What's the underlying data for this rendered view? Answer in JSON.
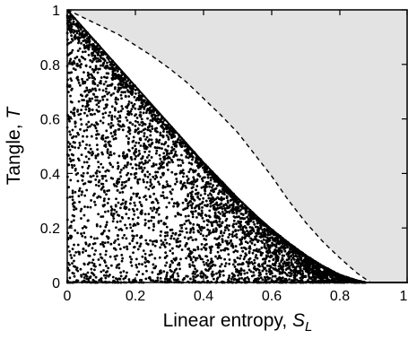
{
  "chart_data": {
    "type": "scatter",
    "title": "",
    "xlabel_text": "Linear entropy, ",
    "xlabel_symbol": "S",
    "xlabel_subscript": "L",
    "ylabel_text": "Tangle, ",
    "ylabel_symbol": "T",
    "xlim": [
      0,
      1
    ],
    "ylim": [
      0,
      1
    ],
    "x_ticks": [
      "0",
      "0.2",
      "0.4",
      "0.6",
      "0.8",
      "1"
    ],
    "y_ticks": [
      "0",
      "0.2",
      "0.4",
      "0.6",
      "0.8",
      "1"
    ],
    "grid": false,
    "legend": "none",
    "lower_boundary_curve": {
      "style": "solid",
      "points": [
        [
          0.0,
          1.0
        ],
        [
          0.05,
          0.93
        ],
        [
          0.1,
          0.86
        ],
        [
          0.15,
          0.79
        ],
        [
          0.2,
          0.72
        ],
        [
          0.25,
          0.65
        ],
        [
          0.3,
          0.58
        ],
        [
          0.35,
          0.51
        ],
        [
          0.4,
          0.44
        ],
        [
          0.45,
          0.375
        ],
        [
          0.5,
          0.31
        ],
        [
          0.55,
          0.25
        ],
        [
          0.6,
          0.195
        ],
        [
          0.65,
          0.145
        ],
        [
          0.7,
          0.1
        ],
        [
          0.75,
          0.06
        ],
        [
          0.8,
          0.028
        ],
        [
          0.85,
          0.007
        ],
        [
          0.875,
          0.0
        ],
        [
          1.0,
          0.0
        ]
      ]
    },
    "upper_boundary_curve": {
      "style": "dashed",
      "points": [
        [
          0.0,
          1.0
        ],
        [
          0.05,
          0.97
        ],
        [
          0.1,
          0.94
        ],
        [
          0.15,
          0.91
        ],
        [
          0.2,
          0.87
        ],
        [
          0.25,
          0.83
        ],
        [
          0.3,
          0.785
        ],
        [
          0.35,
          0.735
        ],
        [
          0.4,
          0.675
        ],
        [
          0.45,
          0.615
        ],
        [
          0.5,
          0.55
        ],
        [
          0.55,
          0.47
        ],
        [
          0.6,
          0.39
        ],
        [
          0.65,
          0.3
        ],
        [
          0.7,
          0.22
        ],
        [
          0.75,
          0.15
        ],
        [
          0.8,
          0.09
        ],
        [
          0.85,
          0.035
        ],
        [
          0.89,
          0.0
        ],
        [
          1.0,
          0.0
        ]
      ]
    },
    "scatter_points": {
      "count": 4600,
      "region": "between y = 0 and the lower boundary curve",
      "density": "dense near the lower boundary curve and near y = 0"
    },
    "shaded_region": "above the dashed upper boundary curve",
    "colors": {
      "shaded_region": "#e3e3e3",
      "points": "#000000",
      "lines": "#000000",
      "background": "#ffffff"
    }
  }
}
